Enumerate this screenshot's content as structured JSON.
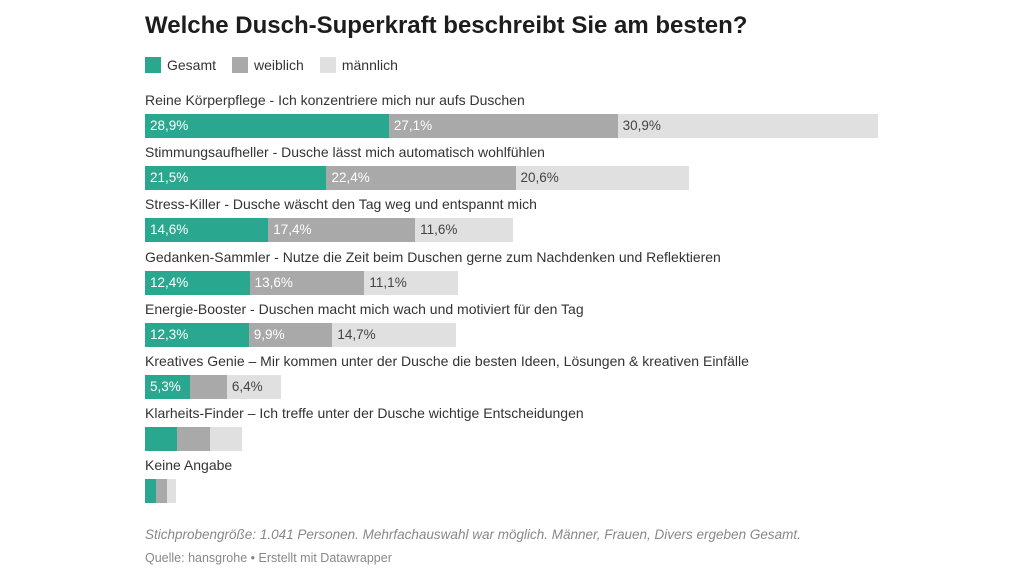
{
  "chart_data": {
    "type": "bar",
    "stacked": true,
    "orientation": "horizontal",
    "title": "Welche Dusch-Superkraft beschreibt Sie am besten?",
    "legend_position": "top-left",
    "grid": false,
    "categories": [
      "Reine Körperpflege - Ich konzentriere mich nur aufs Duschen",
      "Stimmungsaufheller - Dusche lässt mich automatisch wohlfühlen",
      "Stress-Killer - Dusche wäscht den Tag weg und entspannt mich",
      "Gedanken-Sammler - Nutze die Zeit beim Duschen gerne zum Nachdenken und Reflektieren",
      "Energie-Booster - Duschen macht mich wach und motiviert für den Tag",
      "Kreatives Genie – Mir kommen unter der Dusche die besten Ideen, Lösungen & kreativen Einfälle",
      "Klarheits-Finder – Ich treffe unter der Dusche wichtige Entscheidungen",
      "Keine Angabe"
    ],
    "series": [
      {
        "name": "Gesamt",
        "color": "#2aa78f",
        "values": [
          28.9,
          21.5,
          14.6,
          12.4,
          12.3,
          5.3,
          3.8,
          1.3
        ],
        "labels": [
          "28,9%",
          "21,5%",
          "14,6%",
          "12,4%",
          "12,3%",
          "5,3%",
          "",
          ""
        ]
      },
      {
        "name": "weiblich",
        "color": "#a9a9a9",
        "values": [
          27.1,
          22.4,
          17.4,
          13.6,
          9.9,
          4.4,
          3.9,
          1.3
        ],
        "labels": [
          "27,1%",
          "22,4%",
          "17,4%",
          "13,6%",
          "9,9%",
          "",
          "",
          ""
        ]
      },
      {
        "name": "männlich",
        "color": "#e0e0e0",
        "values": [
          30.9,
          20.6,
          11.6,
          11.1,
          14.7,
          6.4,
          3.8,
          1.1
        ],
        "labels": [
          "30,9%",
          "20,6%",
          "11,6%",
          "11,1%",
          "14,7%",
          "6,4%",
          "",
          ""
        ]
      }
    ],
    "note": "Stichprobengröße: 1.041 Personen. Mehrfachauswahl war möglich. Männer, Frauen, Divers ergeben Gesamt.",
    "source": "Quelle: hansgrohe • Erstellt mit Datawrapper"
  }
}
